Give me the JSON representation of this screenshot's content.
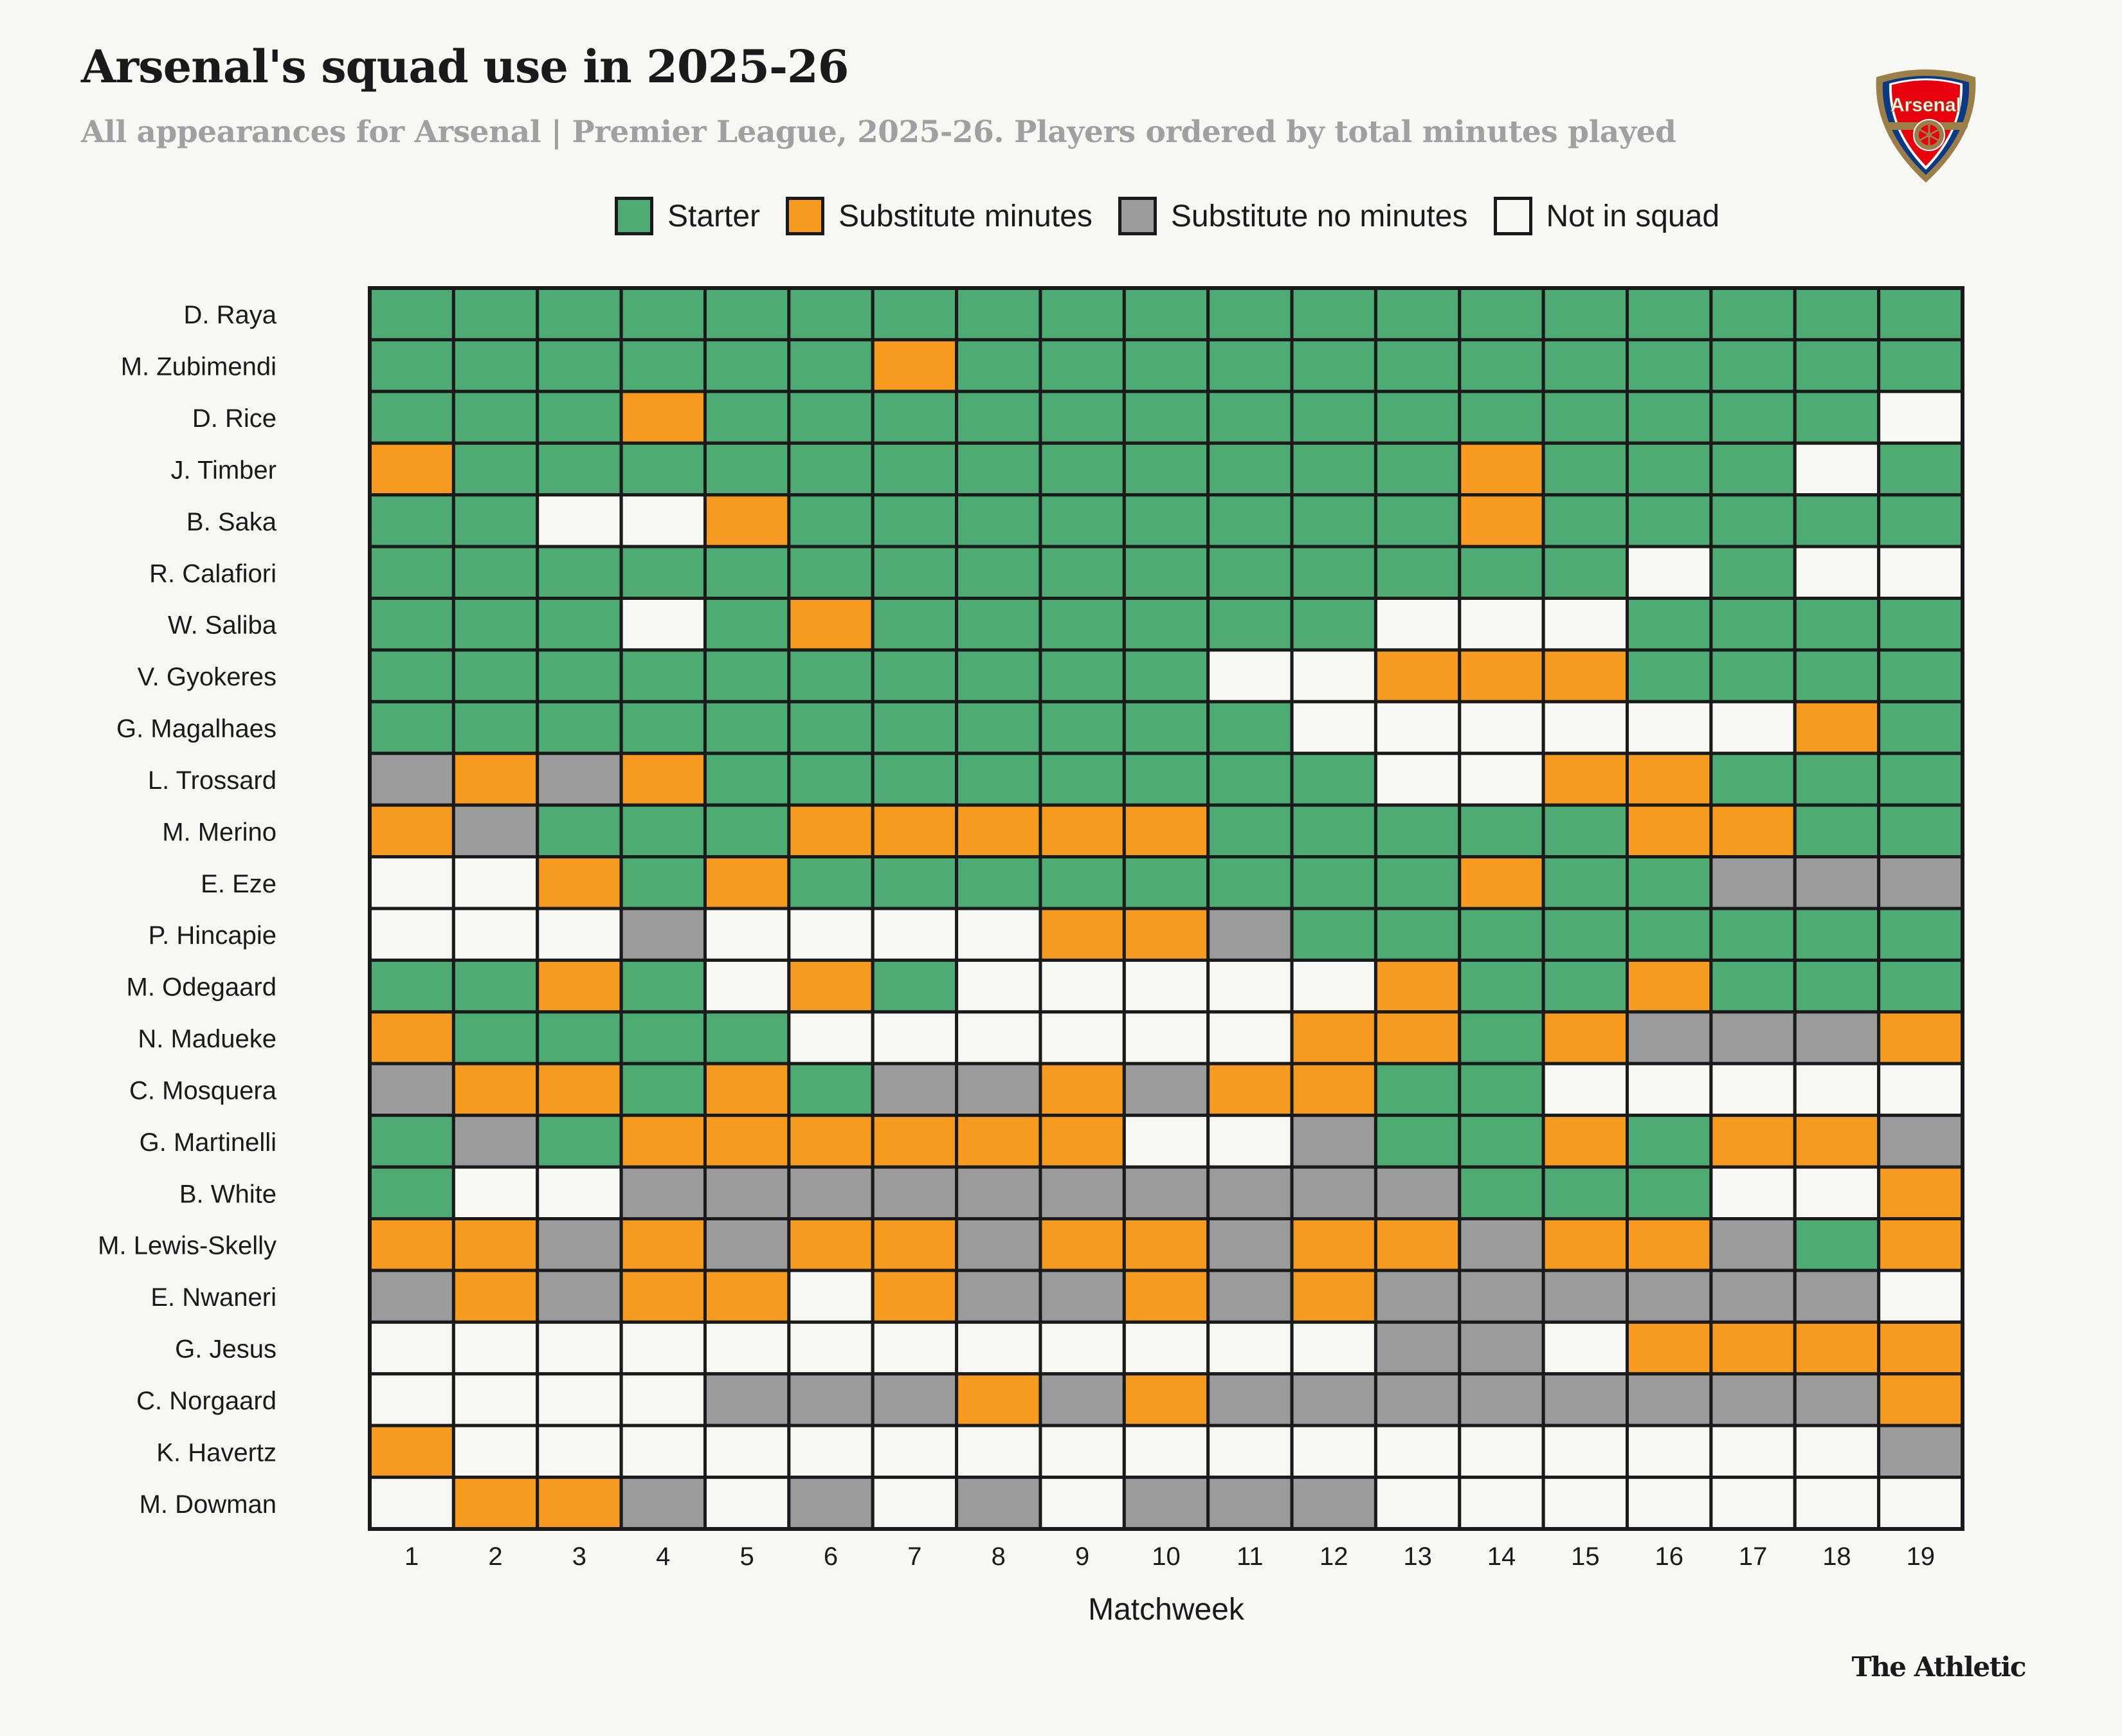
{
  "title": "Arsenal's squad use in 2025-26",
  "subtitle": "All appearances for Arsenal | Premier League, 2025-26. Players ordered by total minutes played",
  "logo_text": "Arsenal",
  "brand": "The Athletic",
  "legend": [
    {
      "code": "S",
      "label": "Starter",
      "color": "#4fab74"
    },
    {
      "code": "M",
      "label": "Substitute minutes",
      "color": "#f79b20"
    },
    {
      "code": "U",
      "label": "Substitute no minutes",
      "color": "#9b9b9b"
    },
    {
      "code": "N",
      "label": "Not in squad",
      "color": "#f7f7f3"
    }
  ],
  "chart_data": {
    "type": "heatmap",
    "title": "Arsenal's squad use in 2025-26",
    "xlabel": "Matchweek",
    "ylabel": "",
    "x": [
      "1",
      "2",
      "3",
      "4",
      "5",
      "6",
      "7",
      "8",
      "9",
      "10",
      "11",
      "12",
      "13",
      "14",
      "15",
      "16",
      "17",
      "18",
      "19"
    ],
    "legend_placement": "top",
    "rows": [
      {
        "player": "D. Raya",
        "values": [
          "S",
          "S",
          "S",
          "S",
          "S",
          "S",
          "S",
          "S",
          "S",
          "S",
          "S",
          "S",
          "S",
          "S",
          "S",
          "S",
          "S",
          "S",
          "S"
        ]
      },
      {
        "player": "M. Zubimendi",
        "values": [
          "S",
          "S",
          "S",
          "S",
          "S",
          "S",
          "M",
          "S",
          "S",
          "S",
          "S",
          "S",
          "S",
          "S",
          "S",
          "S",
          "S",
          "S",
          "S"
        ]
      },
      {
        "player": "D. Rice",
        "values": [
          "S",
          "S",
          "S",
          "M",
          "S",
          "S",
          "S",
          "S",
          "S",
          "S",
          "S",
          "S",
          "S",
          "S",
          "S",
          "S",
          "S",
          "S",
          "N"
        ]
      },
      {
        "player": "J. Timber",
        "values": [
          "M",
          "S",
          "S",
          "S",
          "S",
          "S",
          "S",
          "S",
          "S",
          "S",
          "S",
          "S",
          "S",
          "M",
          "S",
          "S",
          "S",
          "N",
          "S"
        ]
      },
      {
        "player": "B. Saka",
        "values": [
          "S",
          "S",
          "N",
          "N",
          "M",
          "S",
          "S",
          "S",
          "S",
          "S",
          "S",
          "S",
          "S",
          "M",
          "S",
          "S",
          "S",
          "S",
          "S"
        ]
      },
      {
        "player": "R. Calafiori",
        "values": [
          "S",
          "S",
          "S",
          "S",
          "S",
          "S",
          "S",
          "S",
          "S",
          "S",
          "S",
          "S",
          "S",
          "S",
          "S",
          "N",
          "S",
          "N",
          "N"
        ]
      },
      {
        "player": "W. Saliba",
        "values": [
          "S",
          "S",
          "S",
          "N",
          "S",
          "M",
          "S",
          "S",
          "S",
          "S",
          "S",
          "S",
          "N",
          "N",
          "N",
          "S",
          "S",
          "S",
          "S"
        ]
      },
      {
        "player": "V. Gyokeres",
        "values": [
          "S",
          "S",
          "S",
          "S",
          "S",
          "S",
          "S",
          "S",
          "S",
          "S",
          "N",
          "N",
          "M",
          "M",
          "M",
          "S",
          "S",
          "S",
          "S"
        ]
      },
      {
        "player": "G. Magalhaes",
        "values": [
          "S",
          "S",
          "S",
          "S",
          "S",
          "S",
          "S",
          "S",
          "S",
          "S",
          "S",
          "N",
          "N",
          "N",
          "N",
          "N",
          "N",
          "M",
          "S"
        ]
      },
      {
        "player": "L. Trossard",
        "values": [
          "U",
          "M",
          "U",
          "M",
          "S",
          "S",
          "S",
          "S",
          "S",
          "S",
          "S",
          "S",
          "N",
          "N",
          "M",
          "M",
          "S",
          "S",
          "S"
        ]
      },
      {
        "player": "M. Merino",
        "values": [
          "M",
          "U",
          "S",
          "S",
          "S",
          "M",
          "M",
          "M",
          "M",
          "M",
          "S",
          "S",
          "S",
          "S",
          "S",
          "M",
          "M",
          "S",
          "S"
        ]
      },
      {
        "player": "E. Eze",
        "values": [
          "N",
          "N",
          "M",
          "S",
          "M",
          "S",
          "S",
          "S",
          "S",
          "S",
          "S",
          "S",
          "S",
          "M",
          "S",
          "S",
          "U",
          "U",
          "U"
        ]
      },
      {
        "player": "P. Hincapie",
        "values": [
          "N",
          "N",
          "N",
          "U",
          "N",
          "N",
          "N",
          "N",
          "M",
          "M",
          "U",
          "S",
          "S",
          "S",
          "S",
          "S",
          "S",
          "S",
          "S"
        ]
      },
      {
        "player": "M. Odegaard",
        "values": [
          "S",
          "S",
          "M",
          "S",
          "N",
          "M",
          "S",
          "N",
          "N",
          "N",
          "N",
          "N",
          "M",
          "S",
          "S",
          "M",
          "S",
          "S",
          "S"
        ]
      },
      {
        "player": "N. Madueke",
        "values": [
          "M",
          "S",
          "S",
          "S",
          "S",
          "N",
          "N",
          "N",
          "N",
          "N",
          "N",
          "M",
          "M",
          "S",
          "M",
          "U",
          "U",
          "U",
          "M"
        ]
      },
      {
        "player": "C. Mosquera",
        "values": [
          "U",
          "M",
          "M",
          "S",
          "M",
          "S",
          "U",
          "U",
          "M",
          "U",
          "M",
          "M",
          "S",
          "S",
          "N",
          "N",
          "N",
          "N",
          "N"
        ]
      },
      {
        "player": "G. Martinelli",
        "values": [
          "S",
          "U",
          "S",
          "M",
          "M",
          "M",
          "M",
          "M",
          "M",
          "N",
          "N",
          "U",
          "S",
          "S",
          "M",
          "S",
          "M",
          "M",
          "U"
        ]
      },
      {
        "player": "B. White",
        "values": [
          "S",
          "N",
          "N",
          "U",
          "U",
          "U",
          "U",
          "U",
          "U",
          "U",
          "U",
          "U",
          "U",
          "S",
          "S",
          "S",
          "N",
          "N",
          "M"
        ]
      },
      {
        "player": "M. Lewis-Skelly",
        "values": [
          "M",
          "M",
          "U",
          "M",
          "U",
          "M",
          "M",
          "U",
          "M",
          "M",
          "U",
          "M",
          "M",
          "U",
          "M",
          "M",
          "U",
          "S",
          "M"
        ]
      },
      {
        "player": "E. Nwaneri",
        "values": [
          "U",
          "M",
          "U",
          "M",
          "M",
          "N",
          "M",
          "U",
          "U",
          "M",
          "U",
          "M",
          "U",
          "U",
          "U",
          "U",
          "U",
          "U",
          "N"
        ]
      },
      {
        "player": "G. Jesus",
        "values": [
          "N",
          "N",
          "N",
          "N",
          "N",
          "N",
          "N",
          "N",
          "N",
          "N",
          "N",
          "N",
          "U",
          "U",
          "N",
          "M",
          "M",
          "M",
          "M"
        ]
      },
      {
        "player": "C. Norgaard",
        "values": [
          "N",
          "N",
          "N",
          "N",
          "U",
          "U",
          "U",
          "M",
          "U",
          "M",
          "U",
          "U",
          "U",
          "U",
          "U",
          "U",
          "U",
          "U",
          "M"
        ]
      },
      {
        "player": "K. Havertz",
        "values": [
          "M",
          "N",
          "N",
          "N",
          "N",
          "N",
          "N",
          "N",
          "N",
          "N",
          "N",
          "N",
          "N",
          "N",
          "N",
          "N",
          "N",
          "N",
          "U"
        ]
      },
      {
        "player": "M. Dowman",
        "values": [
          "N",
          "M",
          "M",
          "U",
          "N",
          "U",
          "N",
          "U",
          "N",
          "U",
          "U",
          "U",
          "N",
          "N",
          "N",
          "N",
          "N",
          "N",
          "N"
        ]
      }
    ]
  }
}
